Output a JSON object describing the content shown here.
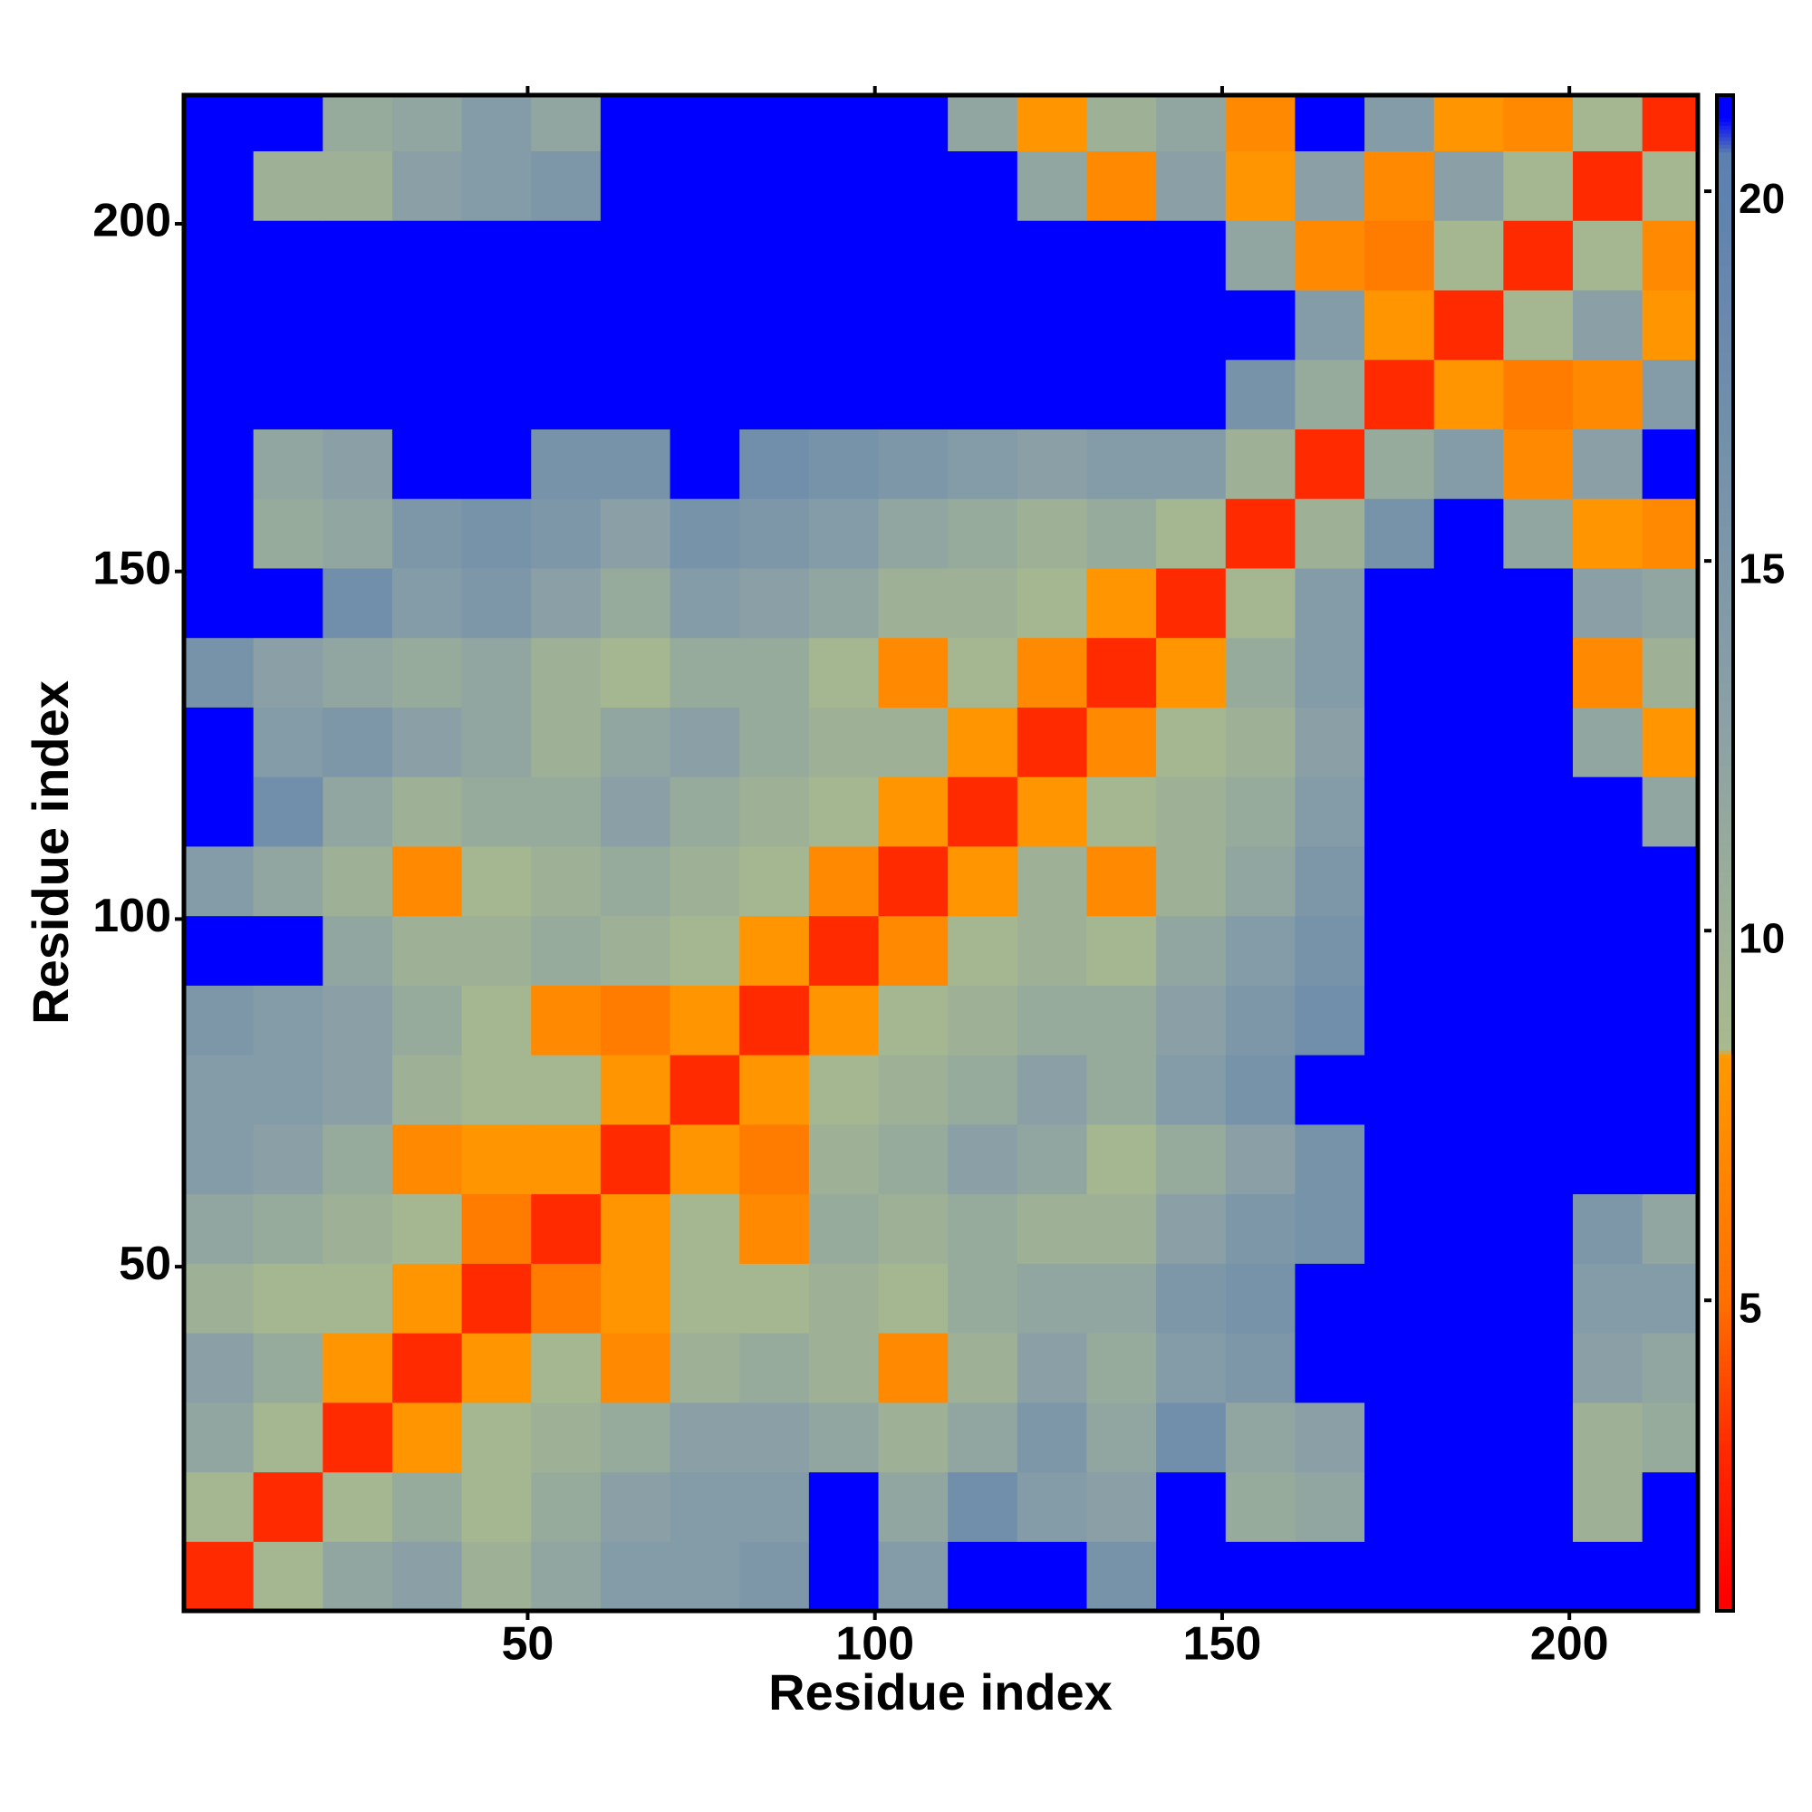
{
  "chart_data": {
    "type": "heatmap",
    "xlabel": "Residue index",
    "ylabel": "Residue index",
    "xlim": [
      0.5,
      218.5
    ],
    "ylim": [
      0.5,
      218.5
    ],
    "xticks": [
      50,
      100,
      150,
      200
    ],
    "yticks": [
      50,
      100,
      150,
      200
    ],
    "xbins": [
      0.5,
      10.5,
      20.5,
      30.5,
      40.5,
      50.5,
      60.5,
      70.5,
      80.5,
      90.5,
      100.5,
      110.5,
      120.5,
      130.5,
      140.5,
      150.5,
      160.5,
      170.5,
      180.5,
      190.5,
      200.5,
      210.5,
      218.5
    ],
    "ybins": [
      0.5,
      10.5,
      20.5,
      30.5,
      40.5,
      50.5,
      60.5,
      70.5,
      80.5,
      90.5,
      100.5,
      110.5,
      120.5,
      130.5,
      140.5,
      150.5,
      160.5,
      170.5,
      180.5,
      190.5,
      200.5,
      210.5,
      218.5
    ],
    "zlim": [
      0.8,
      21.3
    ],
    "zticks": [
      5,
      10,
      15,
      20
    ],
    "colorscale": [
      [
        1,
        "#ff0000"
      ],
      [
        3,
        "#ff2a00"
      ],
      [
        5,
        "#ff7000"
      ],
      [
        8.3,
        "#ff9900"
      ],
      [
        8.4,
        "#a9ba8e"
      ],
      [
        13,
        "#8aa0a6"
      ],
      [
        20.5,
        "#5b80b0"
      ],
      [
        21,
        "#0000ff"
      ]
    ],
    "values": [
      [
        3,
        9,
        12,
        13,
        10,
        12,
        14,
        14,
        15,
        21,
        14,
        21,
        21,
        16,
        21,
        21,
        21,
        21,
        21,
        21,
        21,
        21
      ],
      [
        9,
        3,
        9,
        11,
        9,
        11,
        13,
        14,
        14,
        21,
        12,
        17,
        14,
        13,
        21,
        11,
        12,
        21,
        21,
        21,
        10,
        21
      ],
      [
        12,
        9,
        3,
        8,
        9,
        10,
        11,
        13,
        13,
        12,
        10,
        12,
        15,
        12,
        17,
        12,
        13,
        21,
        21,
        21,
        10,
        11
      ],
      [
        13,
        11,
        8,
        3,
        8,
        9,
        7,
        10,
        11,
        10,
        7,
        10,
        13,
        11,
        14,
        15,
        21,
        21,
        21,
        21,
        13,
        12
      ],
      [
        10,
        9,
        9,
        8,
        3,
        6,
        8,
        9,
        9,
        10,
        9,
        11,
        12,
        12,
        15,
        16,
        21,
        21,
        21,
        21,
        14,
        14
      ],
      [
        12,
        11,
        10,
        9,
        6,
        3,
        8,
        9,
        7,
        11,
        10,
        11,
        10,
        10,
        13,
        15,
        16,
        21,
        21,
        21,
        15,
        12
      ],
      [
        14,
        13,
        11,
        7,
        8,
        8,
        3,
        8,
        6,
        10,
        11,
        13,
        12,
        9,
        11,
        13,
        16,
        21,
        21,
        21,
        21,
        21
      ],
      [
        14,
        14,
        13,
        10,
        9,
        9,
        8,
        3,
        8,
        9,
        10,
        11,
        13,
        11,
        14,
        16,
        21,
        21,
        21,
        21,
        21,
        21
      ],
      [
        15,
        14,
        13,
        11,
        9,
        7,
        6,
        8,
        3,
        8,
        9,
        10,
        11,
        11,
        13,
        15,
        17,
        21,
        21,
        21,
        21,
        21
      ],
      [
        21,
        21,
        12,
        10,
        10,
        11,
        10,
        9,
        8,
        3,
        7,
        9,
        10,
        9,
        12,
        14,
        16,
        21,
        21,
        21,
        21,
        21
      ],
      [
        14,
        12,
        10,
        7,
        9,
        10,
        11,
        10,
        9,
        7,
        3,
        8,
        10,
        7,
        10,
        12,
        15,
        21,
        21,
        21,
        21,
        21
      ],
      [
        21,
        17,
        12,
        10,
        11,
        11,
        13,
        11,
        10,
        9,
        8,
        3,
        8,
        9,
        10,
        11,
        14,
        21,
        21,
        21,
        21,
        12
      ],
      [
        21,
        14,
        15,
        13,
        12,
        10,
        12,
        13,
        11,
        10,
        10,
        8,
        3,
        7,
        9,
        10,
        13,
        21,
        21,
        21,
        12,
        8
      ],
      [
        16,
        13,
        12,
        11,
        12,
        10,
        9,
        11,
        11,
        9,
        7,
        9,
        7,
        3,
        8,
        11,
        14,
        21,
        21,
        21,
        7,
        10
      ],
      [
        21,
        21,
        17,
        14,
        15,
        13,
        11,
        14,
        13,
        12,
        10,
        10,
        9,
        8,
        3,
        9,
        14,
        21,
        21,
        21,
        13,
        12
      ],
      [
        21,
        11,
        12,
        15,
        16,
        15,
        13,
        16,
        15,
        14,
        12,
        11,
        10,
        11,
        9,
        3,
        10,
        16,
        21,
        12,
        8,
        7
      ],
      [
        21,
        12,
        13,
        21,
        21,
        16,
        16,
        21,
        17,
        16,
        15,
        14,
        13,
        14,
        14,
        10,
        3,
        11,
        14,
        7,
        13,
        21
      ],
      [
        21,
        21,
        21,
        21,
        21,
        21,
        21,
        21,
        21,
        21,
        21,
        21,
        21,
        21,
        21,
        16,
        11,
        3,
        8,
        6,
        7,
        14
      ],
      [
        21,
        21,
        21,
        21,
        21,
        21,
        21,
        21,
        21,
        21,
        21,
        21,
        21,
        21,
        21,
        21,
        14,
        8,
        3,
        9,
        13,
        8
      ],
      [
        21,
        21,
        21,
        21,
        21,
        21,
        21,
        21,
        21,
        21,
        21,
        21,
        21,
        21,
        21,
        12,
        7,
        6,
        9,
        3,
        9,
        7
      ],
      [
        21,
        10,
        10,
        13,
        14,
        15,
        21,
        21,
        21,
        21,
        21,
        21,
        12,
        7,
        13,
        8,
        13,
        7,
        13,
        9,
        3,
        9
      ],
      [
        21,
        21,
        11,
        12,
        14,
        12,
        21,
        21,
        21,
        21,
        21,
        12,
        8,
        10,
        12,
        7,
        21,
        14,
        8,
        7,
        9,
        3
      ]
    ]
  }
}
